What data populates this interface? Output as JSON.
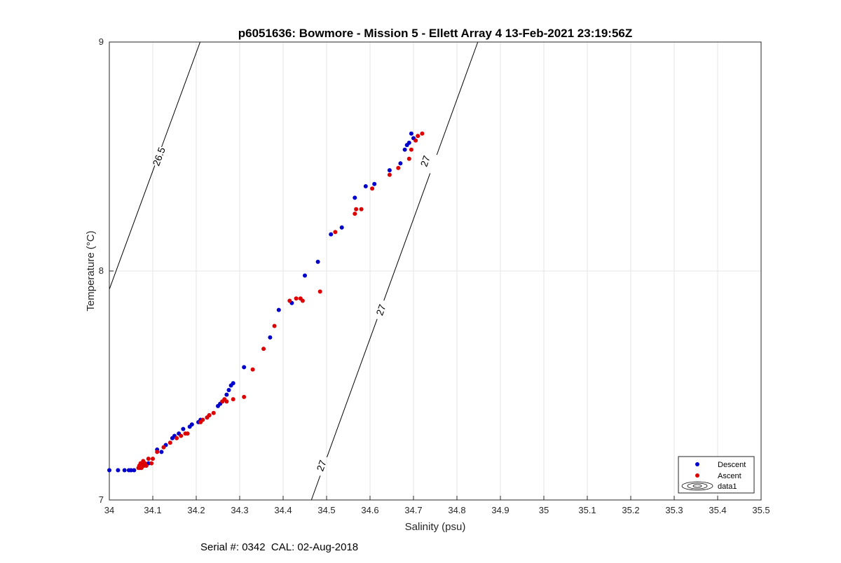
{
  "chart_data": {
    "type": "scatter",
    "title": "p6051636: Bowmore - Mission 5 - Ellett Array 4 13-Feb-2021 23:19:56Z",
    "xlabel": "Salinity (psu)",
    "ylabel": "Temperature (°C)",
    "xlim": [
      34,
      35.5
    ],
    "ylim": [
      7,
      9
    ],
    "xticks": [
      "34",
      "34.1",
      "34.2",
      "34.3",
      "34.4",
      "34.5",
      "34.6",
      "34.7",
      "34.8",
      "34.9",
      "35",
      "35.1",
      "35.2",
      "35.3",
      "35.4",
      "35.5"
    ],
    "yticks": [
      "7",
      "8",
      "9"
    ],
    "grid": true,
    "legend_position": "bottom-right",
    "legend": [
      "Descent",
      "Ascent",
      "data1"
    ],
    "colors": {
      "descent": "#0000cc",
      "ascent": "#dd0000",
      "contour": "#000000",
      "grid": "#e6e6e6"
    },
    "contours": [
      {
        "level": "26.5",
        "points": [
          [
            34.0,
            7.92
          ],
          [
            34.209,
            9.0
          ]
        ],
        "label_positions": [
          [
            34.114,
            8.5
          ]
        ]
      },
      {
        "level": "27",
        "points": [
          [
            34.465,
            7.0
          ],
          [
            34.848,
            9.0
          ]
        ],
        "label_positions": [
          [
            34.488,
            7.15
          ],
          [
            34.625,
            7.83
          ],
          [
            34.727,
            8.48
          ]
        ]
      }
    ],
    "series": [
      {
        "name": "Descent",
        "x": [
          34.0,
          34.02,
          34.035,
          34.045,
          34.05,
          34.057,
          34.07,
          34.075,
          34.08,
          34.085,
          34.09,
          34.11,
          34.12,
          34.13,
          34.145,
          34.15,
          34.16,
          34.17,
          34.185,
          34.19,
          34.205,
          34.21,
          34.225,
          34.23,
          34.25,
          34.255,
          34.26,
          34.27,
          34.275,
          34.28,
          34.285,
          34.31,
          34.37,
          34.39,
          34.42,
          34.45,
          34.48,
          34.51,
          34.535,
          34.565,
          34.59,
          34.61,
          34.645,
          34.67,
          34.68,
          34.685,
          34.69,
          34.695,
          34.7
        ],
        "y": [
          7.13,
          7.13,
          7.13,
          7.13,
          7.13,
          7.13,
          7.14,
          7.15,
          7.16,
          7.15,
          7.16,
          7.22,
          7.21,
          7.24,
          7.27,
          7.28,
          7.29,
          7.31,
          7.32,
          7.33,
          7.34,
          7.35,
          7.36,
          7.37,
          7.41,
          7.42,
          7.43,
          7.46,
          7.48,
          7.5,
          7.51,
          7.58,
          7.71,
          7.83,
          7.86,
          7.98,
          8.04,
          8.16,
          8.19,
          8.32,
          8.37,
          8.38,
          8.44,
          8.47,
          8.53,
          8.55,
          8.56,
          8.6,
          8.58
        ]
      },
      {
        "name": "Ascent",
        "x": [
          34.067,
          34.069,
          34.072,
          34.074,
          34.076,
          34.078,
          34.08,
          34.082,
          34.085,
          34.09,
          34.097,
          34.1,
          34.11,
          34.125,
          34.14,
          34.155,
          34.165,
          34.175,
          34.18,
          34.21,
          34.215,
          34.225,
          34.23,
          34.24,
          34.26,
          34.265,
          34.27,
          34.285,
          34.31,
          34.33,
          34.355,
          34.38,
          34.415,
          34.43,
          34.44,
          34.445,
          34.485,
          34.52,
          34.565,
          34.568,
          34.58,
          34.605,
          34.645,
          34.665,
          34.69,
          34.695,
          34.705,
          34.71,
          34.72
        ],
        "y": [
          7.14,
          7.15,
          7.16,
          7.14,
          7.15,
          7.17,
          7.15,
          7.16,
          7.15,
          7.18,
          7.16,
          7.18,
          7.21,
          7.23,
          7.25,
          7.27,
          7.28,
          7.29,
          7.29,
          7.34,
          7.35,
          7.36,
          7.37,
          7.38,
          7.43,
          7.44,
          7.43,
          7.44,
          7.45,
          7.57,
          7.66,
          7.76,
          7.87,
          7.88,
          7.88,
          7.87,
          7.91,
          8.17,
          8.25,
          8.27,
          8.27,
          8.36,
          8.42,
          8.45,
          8.49,
          8.53,
          8.57,
          8.59,
          8.6
        ]
      }
    ]
  },
  "footer": {
    "text": "Serial #: 0342  CAL: 02-Aug-2018"
  }
}
